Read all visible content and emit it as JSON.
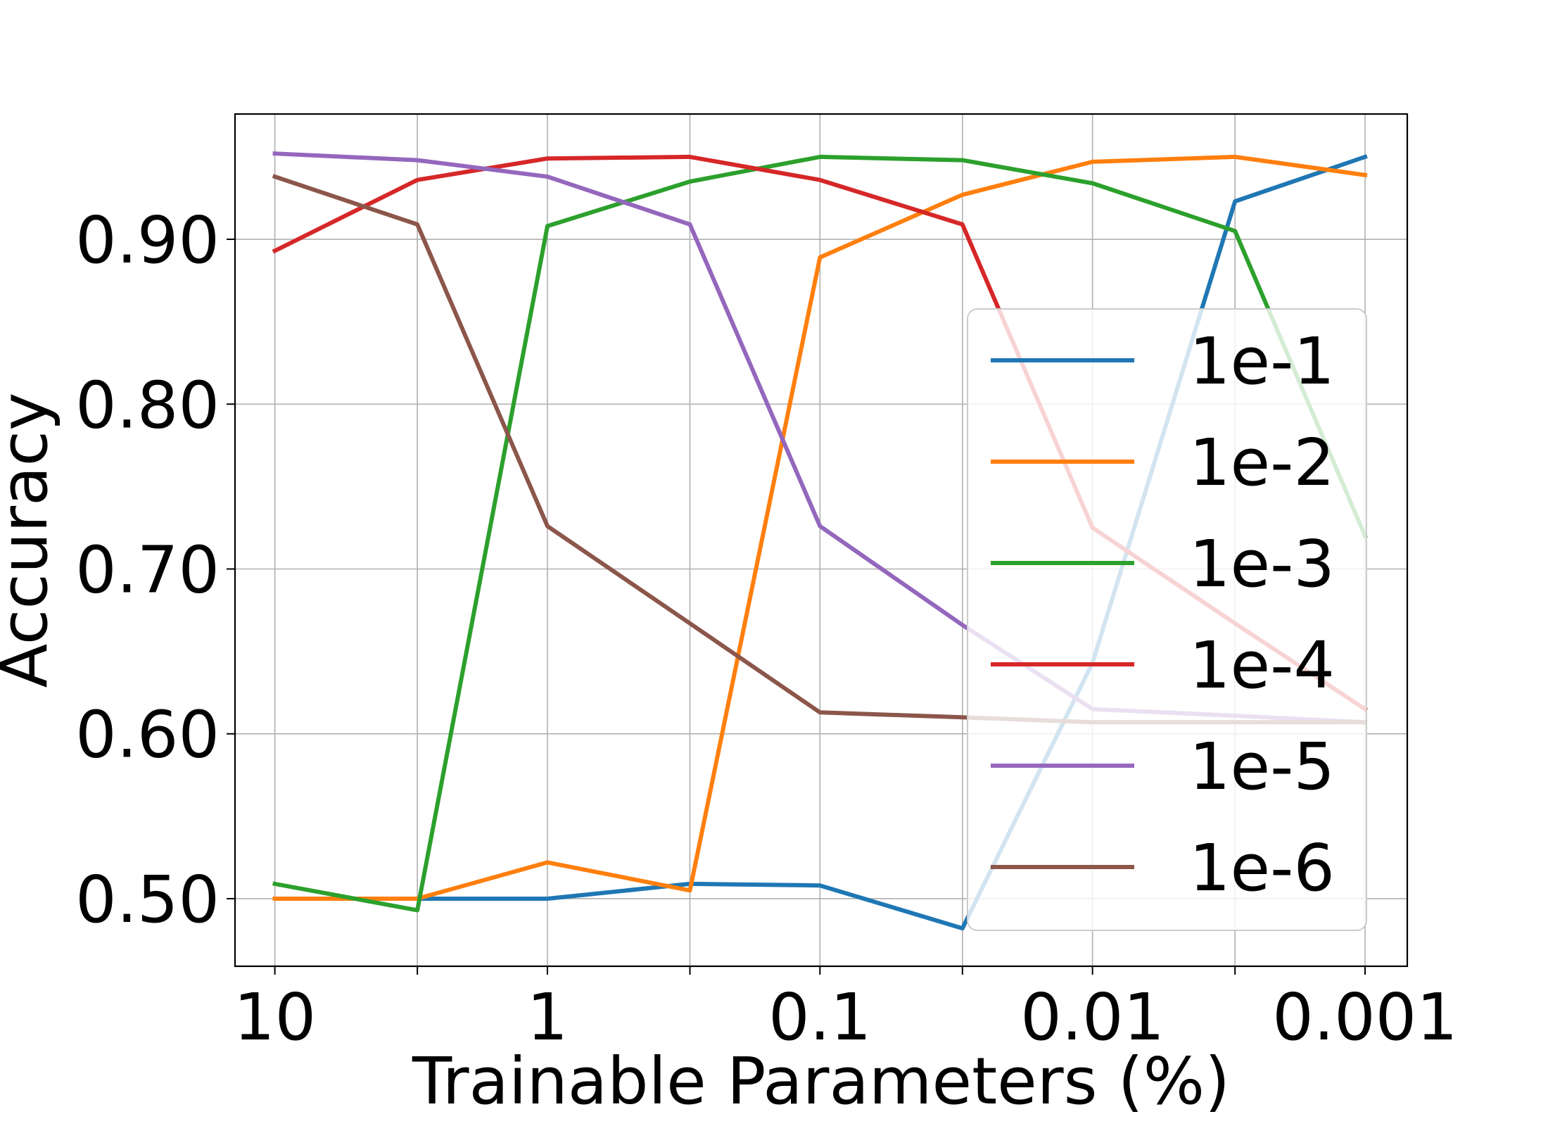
{
  "chart_data": {
    "type": "line",
    "title": "",
    "xlabel": "Trainable Parameters (%)",
    "ylabel": "Accuracy",
    "x": [
      10,
      3,
      1,
      0.3,
      0.1,
      0.03,
      0.01,
      0.003,
      0.001
    ],
    "x_scale": "log-reversed",
    "xlim": [
      14,
      0.0007
    ],
    "x_ticks": [
      10,
      1,
      0.1,
      0.01,
      0.001
    ],
    "x_tick_labels": [
      "10",
      "1",
      "0.1",
      "0.01",
      "0.001"
    ],
    "ylim": [
      0.459,
      0.976
    ],
    "y_ticks": [
      0.5,
      0.6,
      0.7,
      0.8,
      0.9
    ],
    "y_tick_labels": [
      "0.50",
      "0.60",
      "0.70",
      "0.80",
      "0.90"
    ],
    "grid": true,
    "legend_position": "right",
    "series": [
      {
        "name": "1e-1",
        "color": "#1f77b4",
        "values": [
          null,
          0.5,
          0.5,
          0.509,
          0.508,
          0.482,
          0.643,
          0.923,
          0.95
        ]
      },
      {
        "name": "1e-2",
        "color": "#ff7f0e",
        "values": [
          0.5,
          0.5,
          0.522,
          0.505,
          0.889,
          0.927,
          0.947,
          0.95,
          0.939
        ]
      },
      {
        "name": "1e-3",
        "color": "#2ca02c",
        "values": [
          0.509,
          0.493,
          0.908,
          0.935,
          0.95,
          0.948,
          0.934,
          0.905,
          0.72
        ]
      },
      {
        "name": "1e-4",
        "color": "#d62728",
        "values": [
          0.893,
          0.936,
          0.949,
          0.95,
          0.936,
          0.909,
          0.725,
          0.667,
          0.615
        ]
      },
      {
        "name": "1e-5",
        "color": "#9467bd",
        "values": [
          0.952,
          0.948,
          0.938,
          0.909,
          0.726,
          0.666,
          0.615,
          0.611,
          0.607
        ]
      },
      {
        "name": "1e-6",
        "color": "#8c564b",
        "values": [
          0.938,
          0.909,
          0.726,
          0.667,
          0.613,
          0.61,
          0.607,
          0.607,
          0.607
        ]
      }
    ]
  }
}
